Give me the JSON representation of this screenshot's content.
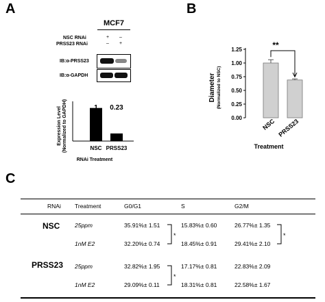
{
  "panelA": {
    "letter": "A",
    "cell_line": "MCF7",
    "row_labels": [
      "NSC RNAi",
      "PRSS23 RNAi"
    ],
    "lane_marks": [
      [
        "+",
        "–"
      ],
      [
        "–",
        "+"
      ]
    ],
    "blots": [
      "IB:α-PRSS23",
      "IB:α-GAPDH"
    ],
    "ylabel_line1": "Expression Level",
    "ylabel_line2": "(Normalized to GAPDH)",
    "xlabel": "RNAi Treatment"
  },
  "panelB": {
    "letter": "B",
    "ylabel_line1": "Diameter",
    "ylabel_line2": "(Normalized to NSC)",
    "xlabel": "Treatment",
    "significance": "**"
  },
  "panelC": {
    "letter": "C",
    "headers": [
      "RNAi",
      "Treatment",
      "G0/G1",
      "S",
      "G2/M"
    ],
    "groups": [
      {
        "name": "NSC",
        "rows": [
          {
            "treatment": "25ppm",
            "g0g1": "35.91%± 1.51",
            "s": "15.83%± 0.60",
            "g2m": "26.77%± 1.35"
          },
          {
            "treatment": "1nM E2",
            "g0g1": "32.20%± 0.74",
            "s": "18.45%± 0.91",
            "g2m": "29.41%± 2.10"
          }
        ]
      },
      {
        "name": "PRSS23",
        "rows": [
          {
            "treatment": "25ppm",
            "g0g1": "32.82%± 1.95",
            "s": "17.17%± 0.81",
            "g2m": "22.83%± 2.09"
          },
          {
            "treatment": "1nM E2",
            "g0g1": "29.09%± 0.11",
            "s": "18.31%± 0.81",
            "g2m": "22.58%± 1.67"
          }
        ]
      }
    ],
    "sig_marks": [
      "*",
      "*",
      "*"
    ]
  },
  "chart_data": [
    {
      "type": "bar",
      "title": "",
      "categories": [
        "NSC",
        "PRSS23"
      ],
      "values": [
        1,
        0.23
      ],
      "data_labels": [
        "1",
        "0.23"
      ],
      "xlabel": "RNAi Treatment",
      "ylabel": "Expression Level (Normalized to GAPDH)",
      "ylim": [
        0,
        1.2
      ],
      "color": "#000000",
      "grid": false
    },
    {
      "type": "bar",
      "title": "",
      "categories": [
        "NSC",
        "PRSS23"
      ],
      "values": [
        1.0,
        0.69
      ],
      "errors": [
        0.06,
        0.02
      ],
      "xlabel": "Treatment",
      "ylabel": "Diameter (Normalized to NSC)",
      "yticks": [
        "0.00",
        "0.25",
        "0.50",
        "0.75",
        "1.00",
        "1.25"
      ],
      "ylim": [
        0,
        1.25
      ],
      "color": "#d0d0d0",
      "grid": false
    }
  ]
}
